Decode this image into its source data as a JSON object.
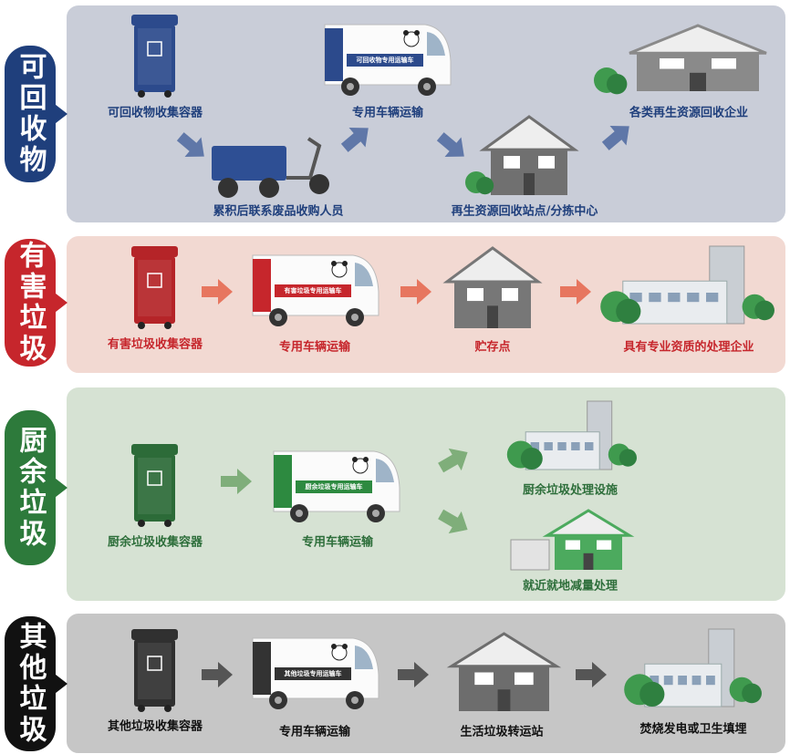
{
  "sections": [
    {
      "title": "可回收物",
      "steps": [
        "可回收物收集容器",
        "累积后联系废品收购人员",
        "专用车辆运输",
        "再生资源回收站点/分拣中心",
        "各类再生资源回收企业"
      ],
      "truck_sign": "可回收物专用运输车"
    },
    {
      "title": "有害垃圾",
      "steps": [
        "有害垃圾收集容器",
        "专用车辆运输",
        "贮存点",
        "具有专业资质的处理企业"
      ],
      "truck_sign": "有害垃圾专用运输车"
    },
    {
      "title": "厨余垃圾",
      "steps": [
        "厨余垃圾收集容器",
        "专用车辆运输",
        "厨余垃圾处理设施",
        "就近就地减量处理"
      ],
      "truck_sign": "厨余垃圾专用运输车"
    },
    {
      "title": "其他垃圾",
      "steps": [
        "其他垃圾收集容器",
        "专用车辆运输",
        "生活垃圾转运站",
        "焚烧发电或卫生填埋"
      ],
      "truck_sign": "其他垃圾专用运输车"
    }
  ]
}
